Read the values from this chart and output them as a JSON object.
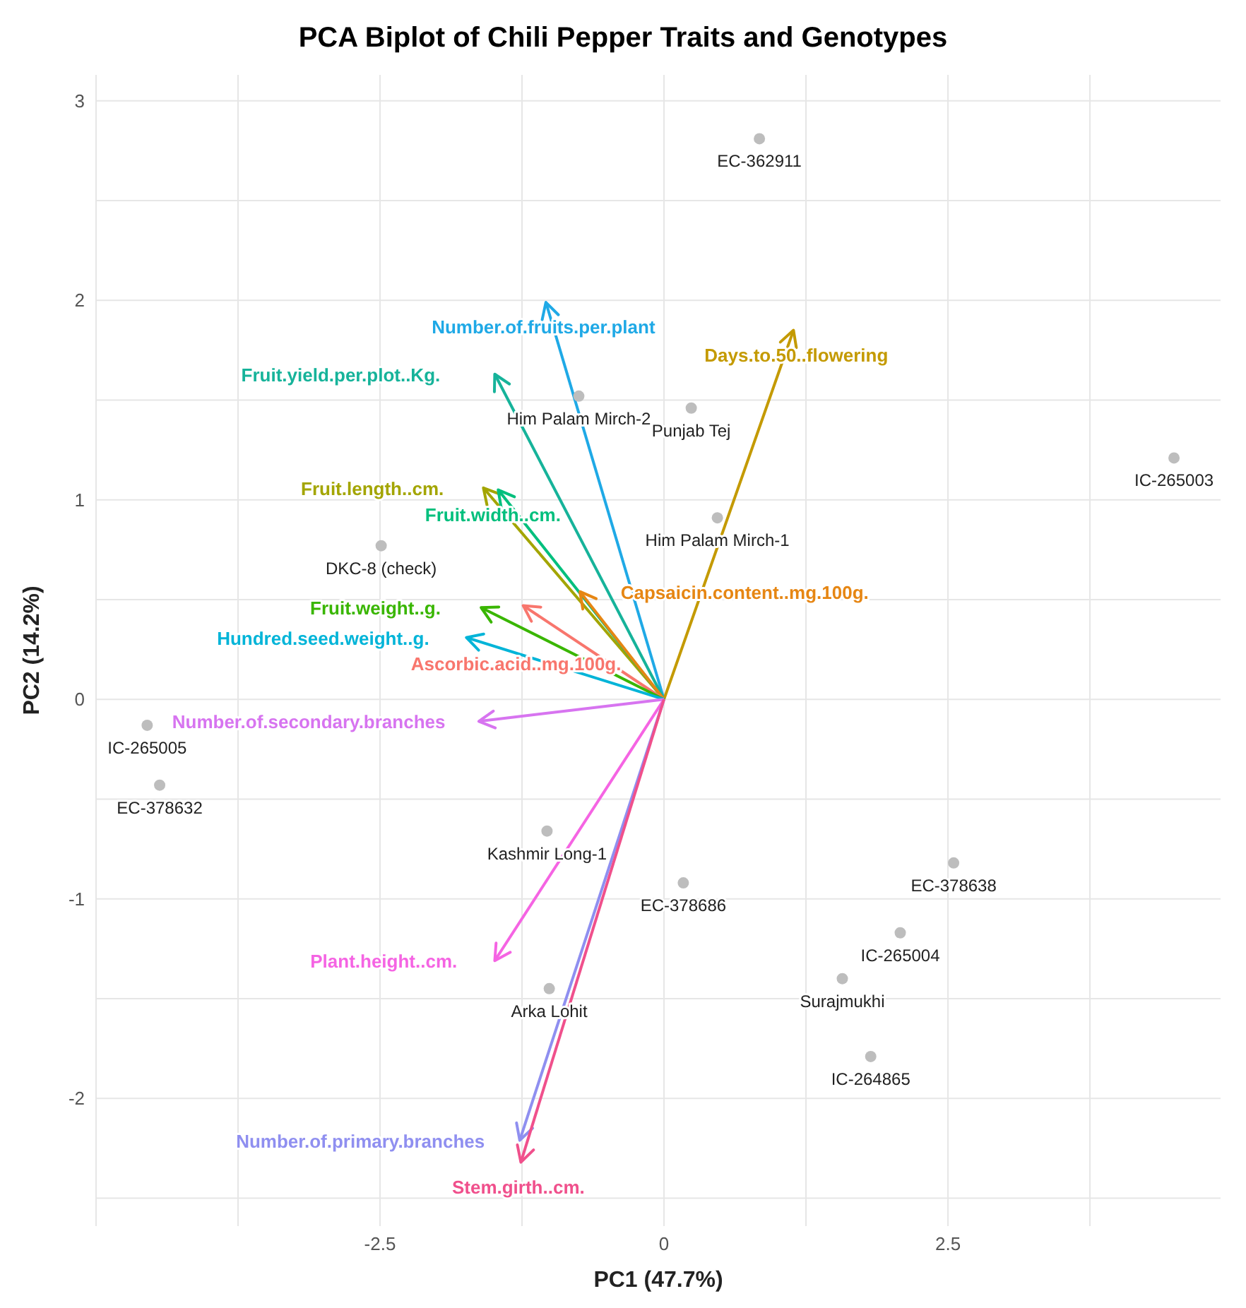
{
  "chart_data": {
    "type": "scatter",
    "title": "PCA Biplot of Chili Pepper Traits and Genotypes",
    "xlabel": "PC1 (47.7%)",
    "ylabel": "PC2 (14.2%)",
    "xlim": [
      -5,
      4.9
    ],
    "ylim": [
      -2.64,
      3.13
    ],
    "xticks": [
      -2.5,
      0,
      2.5
    ],
    "yticks": [
      -2,
      -1,
      0,
      1,
      2,
      3
    ],
    "grid": true,
    "legend": false,
    "series": [
      {
        "color": "#bdbdbd",
        "marker": "circle",
        "x": [
          0.84,
          -0.75,
          0.24,
          4.49,
          0.47,
          -2.49,
          -4.55,
          -4.44,
          -1.03,
          0.17,
          2.55,
          2.08,
          1.57,
          1.82,
          -1.01
        ],
        "values": [
          2.81,
          1.52,
          1.46,
          1.21,
          0.91,
          0.77,
          -0.13,
          -0.43,
          -0.66,
          -0.92,
          -0.82,
          -1.17,
          -1.4,
          -1.79,
          -1.45
        ]
      },
      {
        "type": "line",
        "name": "Number.of.fruits.per.plant",
        "color": "#1fa9e6",
        "x": [
          0,
          -1.04
        ],
        "values": [
          0,
          1.99
        ]
      },
      {
        "type": "line",
        "name": "Fruit.yield.per.plot..Kg.",
        "color": "#16b39a",
        "x": [
          0,
          -1.49
        ],
        "values": [
          0,
          1.63
        ]
      },
      {
        "type": "line",
        "name": "Days.to.50..flowering",
        "color": "#c49a00",
        "x": [
          0,
          1.14
        ],
        "values": [
          0,
          1.85
        ]
      },
      {
        "type": "line",
        "name": "Fruit.length..cm.",
        "color": "#a3a500",
        "x": [
          0,
          -1.59
        ],
        "values": [
          0,
          1.06
        ]
      },
      {
        "type": "line",
        "name": "Fruit.width..cm.",
        "color": "#00bf7d",
        "x": [
          0,
          -1.46
        ],
        "values": [
          0,
          1.05
        ]
      },
      {
        "type": "line",
        "name": "Capsaicin.content..mg.100g.",
        "color": "#e68613",
        "x": [
          0,
          -0.74
        ],
        "values": [
          0,
          0.54
        ]
      },
      {
        "type": "line",
        "name": "Ascorbic.acid..mg.100g.",
        "color": "#f8766d",
        "x": [
          0,
          -1.24
        ],
        "values": [
          0,
          0.47
        ]
      },
      {
        "type": "line",
        "name": "Fruit.weight..g.",
        "color": "#39b600",
        "x": [
          0,
          -1.61
        ],
        "values": [
          0,
          0.46
        ]
      },
      {
        "type": "line",
        "name": "Hundred.seed.weight..g.",
        "color": "#00b4d8",
        "x": [
          0,
          -1.74
        ],
        "values": [
          0,
          0.31
        ]
      },
      {
        "type": "line",
        "name": "Number.of.secondary.branches",
        "color": "#d774f0",
        "x": [
          0,
          -1.63
        ],
        "values": [
          0,
          -0.11
        ]
      },
      {
        "type": "line",
        "name": "Plant.height..cm.",
        "color": "#f564e3",
        "x": [
          0,
          -1.49
        ],
        "values": [
          0,
          -1.31
        ]
      },
      {
        "type": "line",
        "name": "Number.of.primary.branches",
        "color": "#8f8ff0",
        "x": [
          0,
          -1.27
        ],
        "values": [
          0,
          -2.21
        ]
      },
      {
        "type": "line",
        "name": "Stem.girth..cm.",
        "color": "#f0508c",
        "x": [
          0,
          -1.26
        ],
        "values": [
          0,
          -2.32
        ]
      }
    ],
    "annotations": [
      {
        "text": "EC-362911",
        "x": 0.84,
        "y": 2.81
      },
      {
        "text": "Him Palam Mirch-2",
        "x": -0.75,
        "y": 1.52
      },
      {
        "text": "Punjab Tej",
        "x": 0.24,
        "y": 1.46
      },
      {
        "text": "IC-265003",
        "x": 4.49,
        "y": 1.21
      },
      {
        "text": "Him Palam Mirch-1",
        "x": 0.47,
        "y": 0.91
      },
      {
        "text": "DKC-8 (check)",
        "x": -2.49,
        "y": 0.77
      },
      {
        "text": "IC-265005",
        "x": -4.55,
        "y": -0.13
      },
      {
        "text": "EC-378632",
        "x": -4.44,
        "y": -0.43
      },
      {
        "text": "Kashmir Long-1",
        "x": -1.03,
        "y": -0.66
      },
      {
        "text": "EC-378686",
        "x": 0.17,
        "y": -0.92
      },
      {
        "text": "EC-378638",
        "x": 2.55,
        "y": -0.82
      },
      {
        "text": "IC-265004",
        "x": 2.08,
        "y": -1.17
      },
      {
        "text": "Surajmukhi",
        "x": 1.57,
        "y": -1.4
      },
      {
        "text": "IC-264865",
        "x": 1.82,
        "y": -1.79
      },
      {
        "text": "Arka Lohit",
        "x": -1.01,
        "y": -1.45
      }
    ]
  }
}
